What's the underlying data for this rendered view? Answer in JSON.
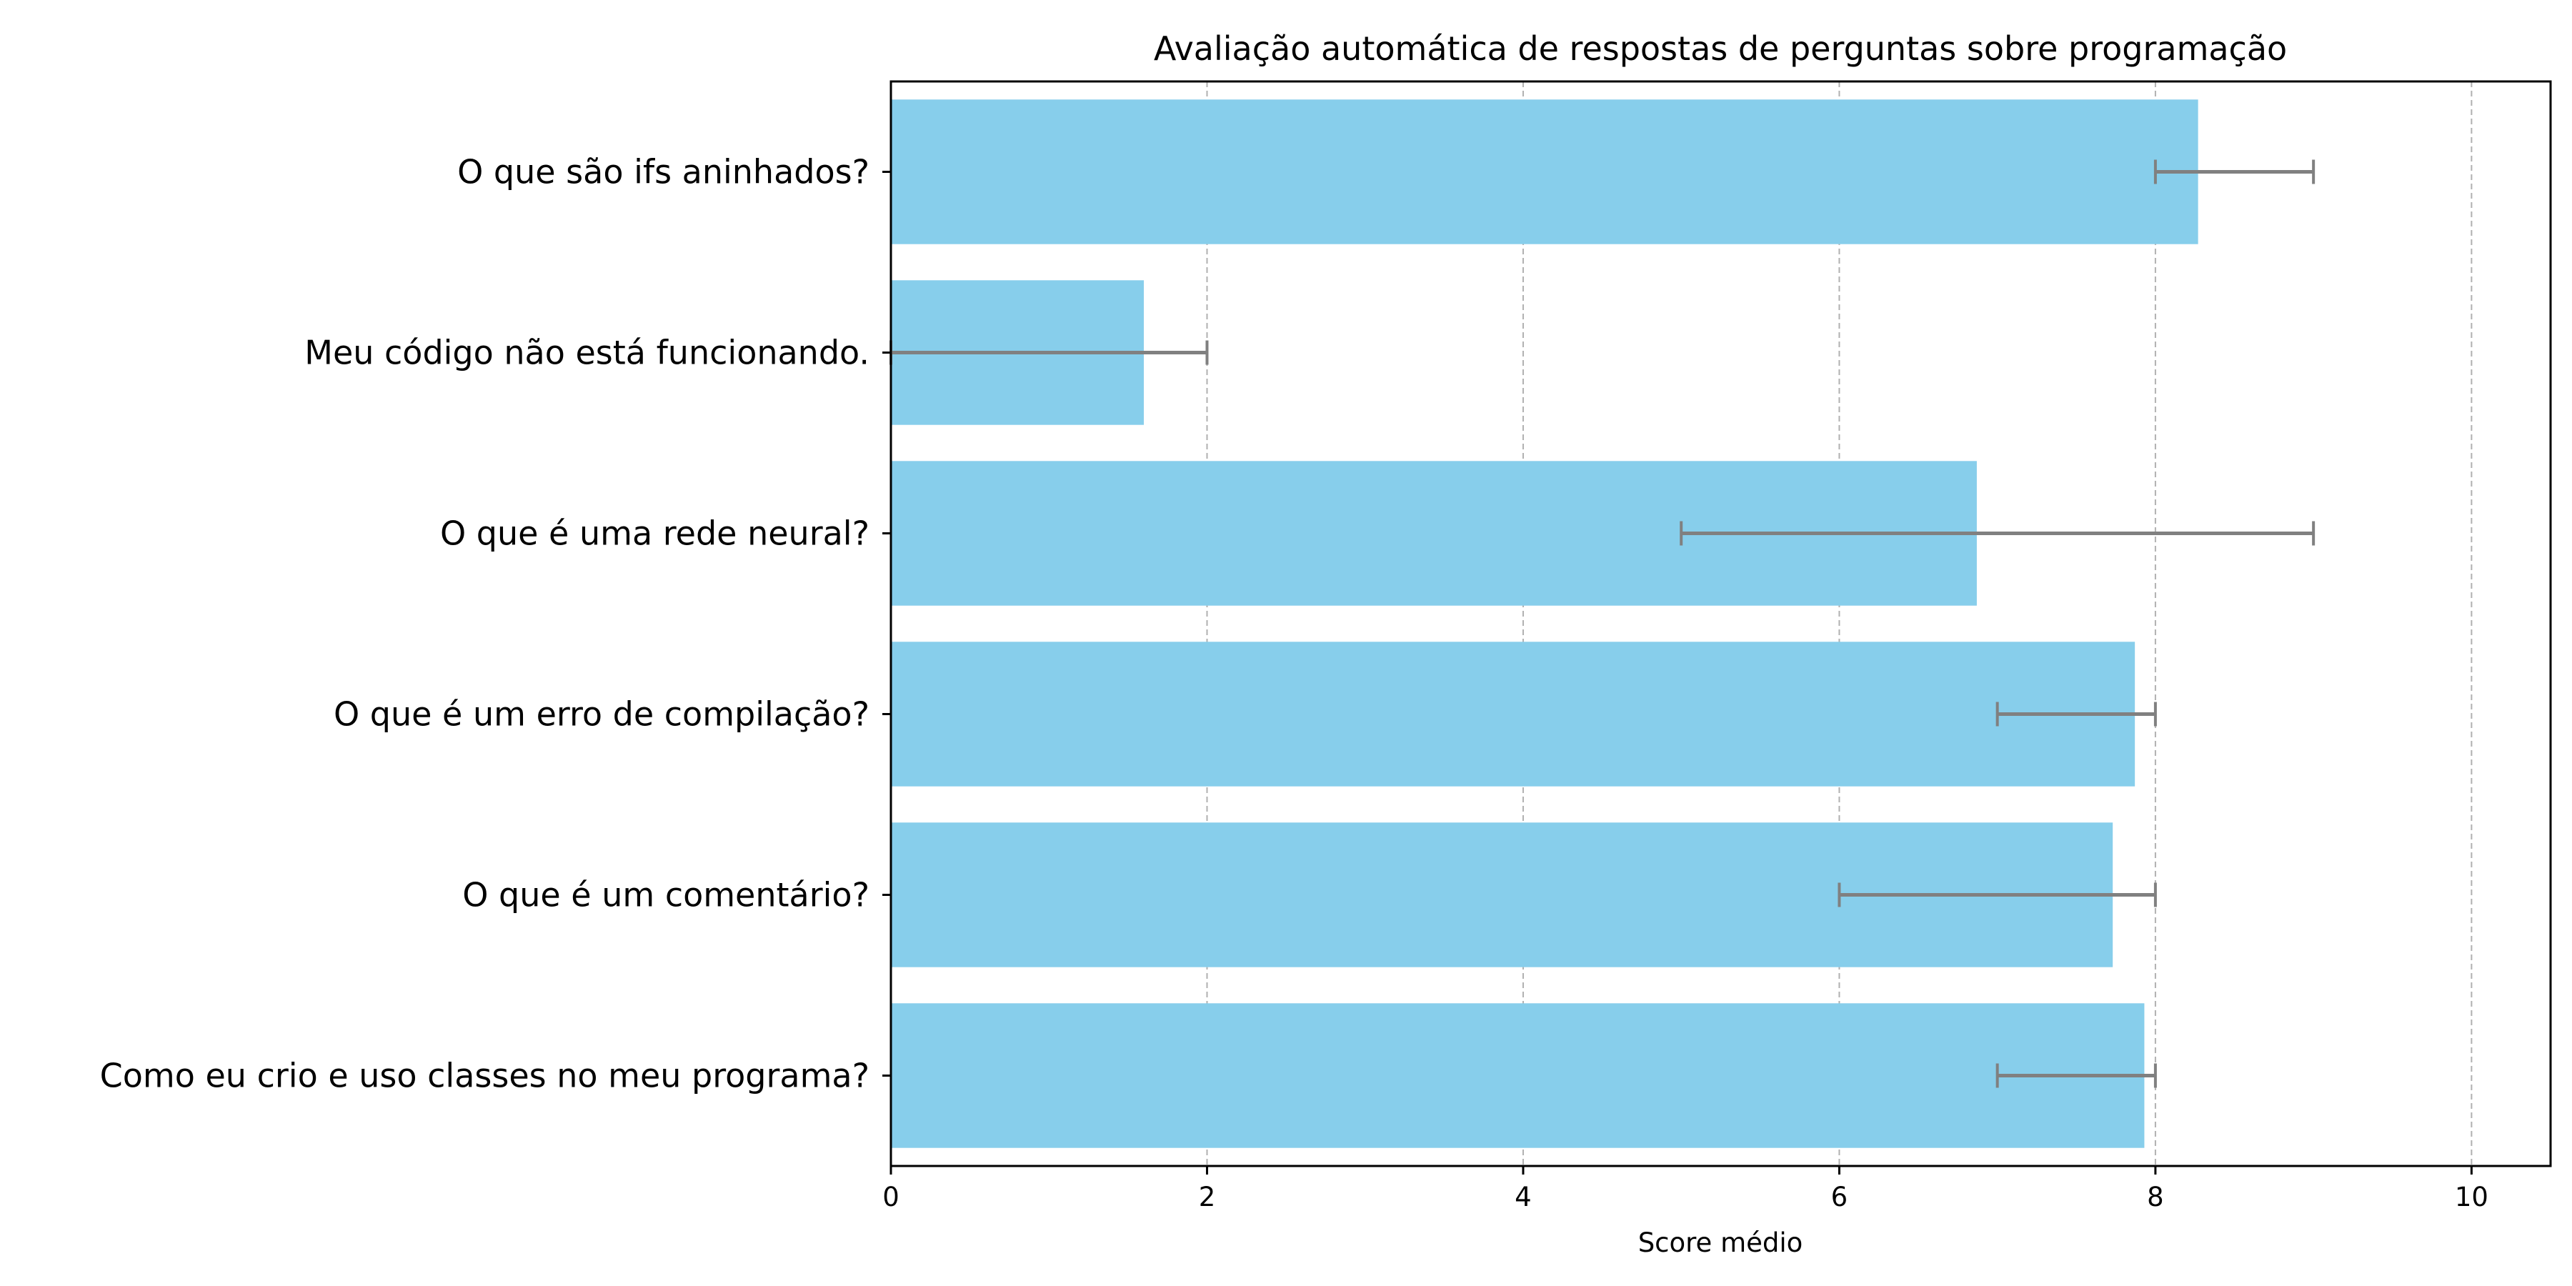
{
  "chart_data": {
    "type": "bar",
    "orientation": "horizontal",
    "title": "Avaliação automática de respostas de perguntas sobre programação",
    "xlabel": "Score médio",
    "ylabel": "",
    "xlim": [
      0,
      10.5
    ],
    "xticks": [
      0,
      2,
      4,
      6,
      8,
      10
    ],
    "grid": {
      "x": true,
      "y": false,
      "style": "dashed"
    },
    "colors": {
      "bar": "#87CEEB",
      "error_bar": "#808080",
      "grid": "#b0b0b0",
      "axis": "#000000"
    },
    "categories": [
      "O que são ifs aninhados?",
      "Meu código não está funcionando.",
      "O que é uma rede neural?",
      "O que é um erro de compilação?",
      "O que é um comentário?",
      "Como eu crio e uso classes no meu programa?"
    ],
    "values": [
      8.27,
      1.6,
      6.87,
      7.87,
      7.73,
      7.93
    ],
    "error_low": [
      8.0,
      0.0,
      5.0,
      7.0,
      6.0,
      7.0
    ],
    "error_high": [
      9.0,
      2.0,
      9.0,
      8.0,
      8.0,
      8.0
    ]
  }
}
